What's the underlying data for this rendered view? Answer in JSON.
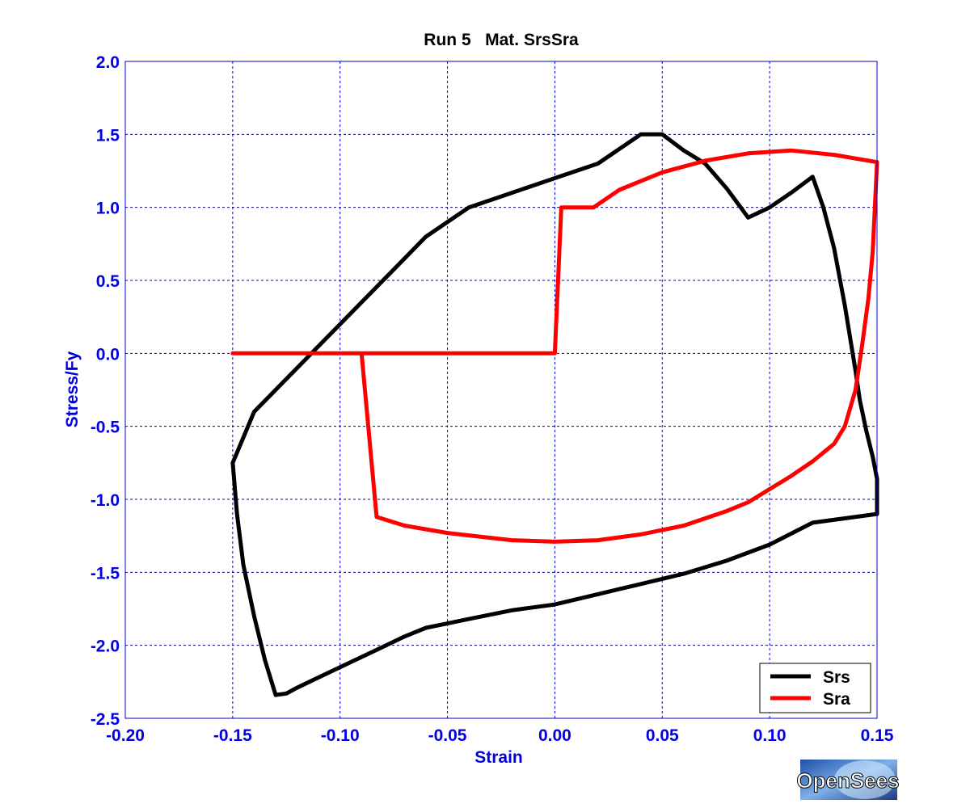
{
  "chart_data": {
    "type": "line",
    "title": "Run 5   Mat. SrsSra",
    "xlabel": "Strain",
    "ylabel": "Stress/Fy",
    "xlim": [
      -0.2,
      0.15
    ],
    "ylim": [
      -2.5,
      2.0
    ],
    "xticks": [
      -0.2,
      -0.15,
      -0.1,
      -0.05,
      0.0,
      0.05,
      0.1,
      0.15
    ],
    "xtick_labels": [
      "-0.20",
      "-0.15",
      "-0.10",
      "-0.05",
      "0.00",
      "0.05",
      "0.10",
      "0.15"
    ],
    "yticks": [
      2.0,
      1.5,
      1.0,
      0.5,
      0.0,
      -0.5,
      -1.0,
      -1.5,
      -2.0,
      -2.5
    ],
    "ytick_labels": [
      "2.0",
      "1.5",
      "1.0",
      "0.5",
      "0.0",
      "-0.5",
      "-1.0",
      "-1.5",
      "-2.0",
      "-2.5"
    ],
    "grid": true,
    "legend_position": "bottom-right",
    "series": [
      {
        "name": "Srs",
        "color": "#000000",
        "x": [
          0.0,
          0.02,
          0.04,
          0.06,
          0.08,
          0.1,
          0.12,
          0.15,
          0.15,
          0.148,
          0.145,
          0.142,
          0.14,
          0.135,
          0.13,
          0.125,
          0.12,
          0.11,
          0.1,
          0.09,
          0.08,
          0.07,
          0.06,
          0.05,
          0.04,
          0.02,
          0.0,
          -0.02,
          -0.04,
          -0.06,
          -0.08,
          -0.1,
          -0.12,
          -0.14,
          -0.15,
          -0.148,
          -0.145,
          -0.14,
          -0.135,
          -0.13,
          -0.125,
          -0.12,
          -0.11,
          -0.1,
          -0.09,
          -0.08,
          -0.07,
          -0.06,
          -0.05,
          -0.04,
          -0.03,
          -0.02,
          -0.01,
          0.0
        ],
        "y": [
          -1.72,
          -1.65,
          -1.58,
          -1.51,
          -1.42,
          -1.31,
          -1.16,
          -1.1,
          -0.86,
          -0.71,
          -0.53,
          -0.32,
          -0.12,
          0.33,
          0.72,
          1.0,
          1.21,
          1.1,
          1.0,
          0.93,
          1.13,
          1.3,
          1.39,
          1.5,
          1.5,
          1.3,
          1.2,
          1.1,
          1.0,
          0.8,
          0.5,
          0.2,
          -0.1,
          -0.4,
          -0.75,
          -1.1,
          -1.45,
          -1.8,
          -2.1,
          -2.34,
          -2.33,
          -2.29,
          -2.22,
          -2.15,
          -2.08,
          -2.01,
          -1.94,
          -1.88,
          -1.85,
          -1.82,
          -1.79,
          -1.76,
          -1.74,
          -1.72
        ]
      },
      {
        "name": "Sra",
        "color": "#ff0000",
        "x": [
          -0.15,
          0.0,
          0.003,
          0.018,
          0.03,
          0.05,
          0.07,
          0.09,
          0.11,
          0.13,
          0.15,
          0.149,
          0.148,
          0.146,
          0.143,
          0.14,
          0.135,
          0.13,
          0.12,
          0.11,
          0.1,
          0.09,
          0.08,
          0.06,
          0.04,
          0.02,
          0.0,
          -0.02,
          -0.05,
          -0.07,
          -0.083,
          -0.09,
          -0.09,
          -0.15
        ],
        "y": [
          0.0,
          0.0,
          1.0,
          1.0,
          1.12,
          1.24,
          1.32,
          1.37,
          1.39,
          1.36,
          1.31,
          1.0,
          0.7,
          0.38,
          0.05,
          -0.25,
          -0.5,
          -0.62,
          -0.74,
          -0.84,
          -0.93,
          -1.02,
          -1.08,
          -1.18,
          -1.24,
          -1.28,
          -1.29,
          -1.28,
          -1.23,
          -1.18,
          -1.12,
          0.0,
          0.0,
          0.0
        ]
      }
    ]
  },
  "logo": {
    "text": "OpenSees"
  }
}
